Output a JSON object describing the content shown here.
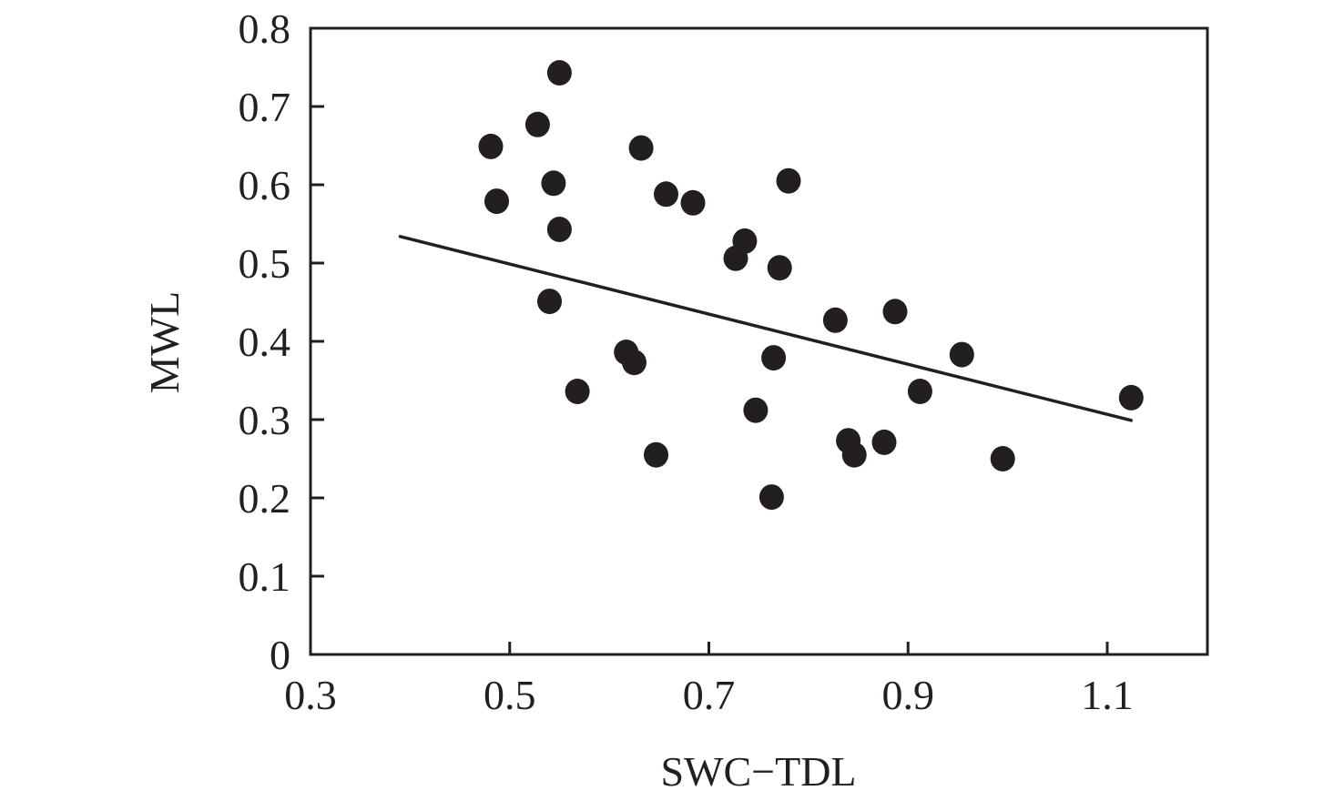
{
  "chart_data": {
    "type": "scatter",
    "title": "",
    "xlabel": "SWC−TDL",
    "ylabel": "MWL",
    "xlim": [
      0.3,
      1.2
    ],
    "ylim": [
      0,
      0.8
    ],
    "xticks": [
      0.3,
      0.5,
      0.7,
      0.9,
      1.1
    ],
    "xtick_labels": [
      "0.3",
      "0.5",
      "0.7",
      "0.9",
      "1.1"
    ],
    "yticks": [
      0,
      0.1,
      0.2,
      0.3,
      0.4,
      0.5,
      0.6,
      0.7,
      0.8
    ],
    "ytick_labels": [
      "0",
      "0.1",
      "0.2",
      "0.3",
      "0.4",
      "0.5",
      "0.6",
      "0.7",
      "0.8"
    ],
    "grid": false,
    "legend": "none",
    "marker_color": "#231f20",
    "series": [
      {
        "name": "observations",
        "points": [
          [
            0.481,
            0.649
          ],
          [
            0.487,
            0.579
          ],
          [
            0.528,
            0.677
          ],
          [
            0.55,
            0.743
          ],
          [
            0.544,
            0.602
          ],
          [
            0.55,
            0.543
          ],
          [
            0.54,
            0.451
          ],
          [
            0.568,
            0.336
          ],
          [
            0.632,
            0.647
          ],
          [
            0.657,
            0.588
          ],
          [
            0.684,
            0.577
          ],
          [
            0.617,
            0.386
          ],
          [
            0.625,
            0.373
          ],
          [
            0.647,
            0.255
          ],
          [
            0.78,
            0.605
          ],
          [
            0.736,
            0.528
          ],
          [
            0.727,
            0.506
          ],
          [
            0.771,
            0.494
          ],
          [
            0.765,
            0.379
          ],
          [
            0.747,
            0.312
          ],
          [
            0.763,
            0.201
          ],
          [
            0.827,
            0.427
          ],
          [
            0.887,
            0.438
          ],
          [
            0.954,
            0.383
          ],
          [
            0.912,
            0.336
          ],
          [
            0.84,
            0.273
          ],
          [
            0.846,
            0.255
          ],
          [
            0.876,
            0.271
          ],
          [
            0.995,
            0.25
          ],
          [
            1.124,
            0.328
          ]
        ]
      }
    ],
    "trend_line": {
      "x": [
        0.39,
        1.124
      ],
      "y": [
        0.534,
        0.299
      ]
    }
  }
}
